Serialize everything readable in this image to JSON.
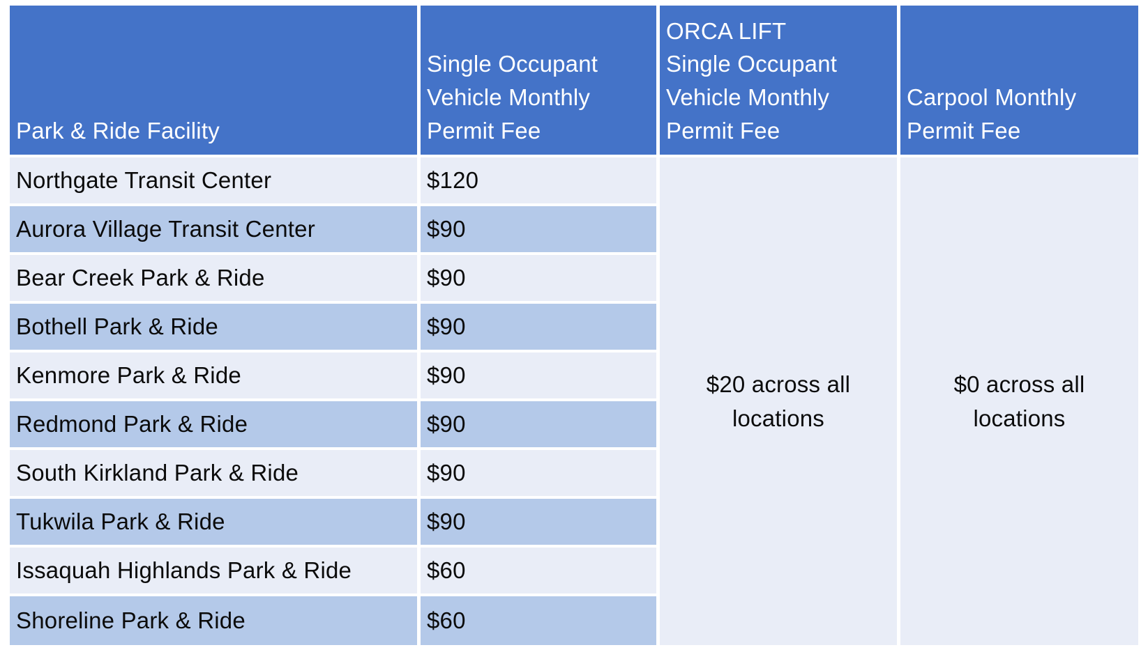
{
  "colors": {
    "header_bg": "#4473C8",
    "band_row_bg": "#B4C9E9",
    "light_row_bg": "#E9EDF7",
    "border": "#FFFFFF",
    "header_text": "#FFFFFF",
    "body_text": "#0B0B0B"
  },
  "table": {
    "headers": [
      "Park & Ride Facility",
      "Single Occupant\nVehicle Monthly\nPermit Fee",
      "ORCA LIFT\nSingle Occupant\nVehicle Monthly\nPermit Fee",
      "Carpool Monthly\nPermit Fee"
    ],
    "rows": [
      {
        "facility": "Northgate Transit Center",
        "sov_fee": "$120"
      },
      {
        "facility": "Aurora Village Transit Center",
        "sov_fee": "$90"
      },
      {
        "facility": "Bear Creek Park & Ride",
        "sov_fee": "$90"
      },
      {
        "facility": "Bothell Park & Ride",
        "sov_fee": "$90"
      },
      {
        "facility": "Kenmore Park & Ride",
        "sov_fee": "$90"
      },
      {
        "facility": "Redmond Park & Ride",
        "sov_fee": "$90"
      },
      {
        "facility": "South Kirkland Park & Ride",
        "sov_fee": "$90"
      },
      {
        "facility": "Tukwila Park & Ride",
        "sov_fee": "$90"
      },
      {
        "facility": "Issaquah Highlands Park & Ride",
        "sov_fee": "$60"
      },
      {
        "facility": "Shoreline Park & Ride",
        "sov_fee": "$60"
      }
    ],
    "merged": {
      "orca_lift": {
        "text": "$20 across all\nlocations"
      },
      "carpool": {
        "text": "$0 across all\nlocations"
      }
    }
  }
}
